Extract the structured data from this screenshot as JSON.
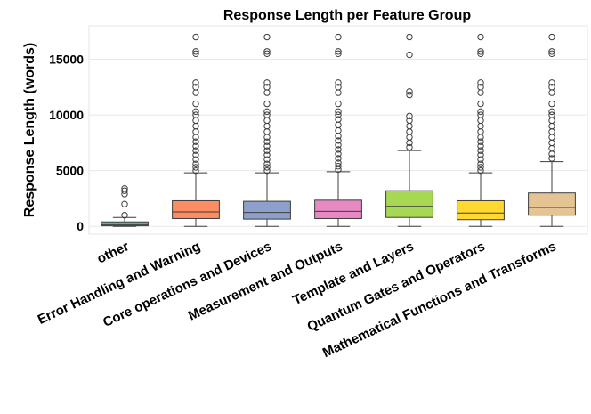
{
  "chart_data": {
    "type": "box",
    "title": "Response Length per Feature Group",
    "xlabel": "",
    "ylabel": "Response Length (words)",
    "ylim": [
      -700,
      18000
    ],
    "yticks": [
      0,
      5000,
      10000,
      15000
    ],
    "ytick_labels": [
      "0",
      "5000",
      "10000",
      "15000"
    ],
    "grid": "horizontal",
    "categories": [
      "other",
      "Error Handling and Warning",
      "Core operations and Devices",
      "Measurement and Outputs",
      "Template and Layers",
      "Quantum Gates and Operators",
      "Mathematical Functions and Transforms"
    ],
    "colors": [
      "#66c2a5",
      "#fc8d62",
      "#8da0cb",
      "#e78ac3",
      "#a6d854",
      "#ffd92f",
      "#e5c494"
    ],
    "boxes": [
      {
        "min": 0,
        "q1": 50,
        "median": 150,
        "q3": 400,
        "max": 800,
        "outliers": [
          1000,
          2000,
          2900,
          3200,
          3400
        ]
      },
      {
        "min": 0,
        "q1": 700,
        "median": 1300,
        "q3": 2300,
        "max": 4800,
        "outliers": [
          5000,
          5300,
          5600,
          6000,
          6400,
          6800,
          7200,
          7600,
          8000,
          8500,
          9000,
          9500,
          10000,
          10300,
          11000,
          12000,
          12500,
          12900,
          15500,
          15700,
          17000
        ]
      },
      {
        "min": 0,
        "q1": 650,
        "median": 1250,
        "q3": 2250,
        "max": 4800,
        "outliers": [
          5000,
          5300,
          5600,
          6000,
          6400,
          6800,
          7200,
          7600,
          8000,
          8500,
          9000,
          9500,
          10000,
          10300,
          11000,
          12000,
          12500,
          12900,
          15500,
          15700,
          17000
        ]
      },
      {
        "min": 0,
        "q1": 700,
        "median": 1350,
        "q3": 2350,
        "max": 4900,
        "outliers": [
          5100,
          5400,
          5700,
          6100,
          6500,
          6900,
          7300,
          7700,
          8100,
          8600,
          9100,
          9600,
          10000,
          10300,
          11000,
          12000,
          12500,
          12900,
          15500,
          15700,
          17000
        ]
      },
      {
        "min": 0,
        "q1": 800,
        "median": 1800,
        "q3": 3200,
        "max": 6800,
        "outliers": [
          7100,
          7500,
          8000,
          8500,
          9000,
          9500,
          9900,
          11800,
          12100,
          15400,
          17000
        ]
      },
      {
        "min": 0,
        "q1": 600,
        "median": 1200,
        "q3": 2300,
        "max": 4800,
        "outliers": [
          5000,
          5300,
          5600,
          6000,
          6400,
          6800,
          7200,
          7600,
          8000,
          8500,
          9000,
          9500,
          10000,
          10300,
          11000,
          12000,
          12500,
          12900,
          15500,
          15700,
          17000
        ]
      },
      {
        "min": 0,
        "q1": 1000,
        "median": 1700,
        "q3": 3000,
        "max": 5800,
        "outliers": [
          6100,
          6500,
          7000,
          7500,
          8000,
          8500,
          9000,
          9500,
          10000,
          10300,
          11000,
          12000,
          12500,
          12900,
          15500,
          15700,
          17000
        ]
      }
    ]
  }
}
